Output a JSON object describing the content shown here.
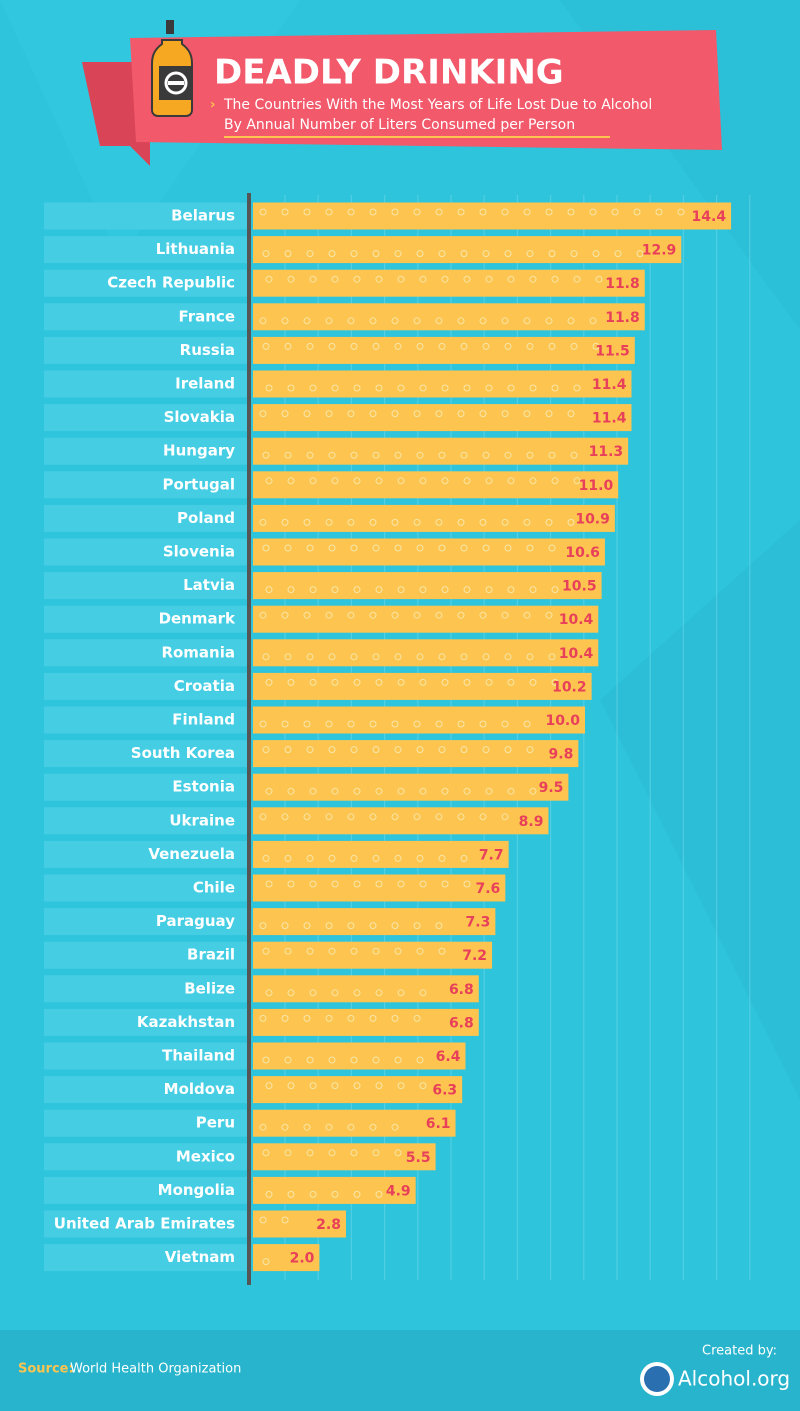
{
  "chart_data": {
    "type": "bar",
    "orientation": "horizontal",
    "title": "DEADLY DRINKING",
    "subtitle": [
      "The Countries With the Most Years of Life Lost Due to Alcohol",
      "By Annual Number of Liters Consumed per Person"
    ],
    "categories": [
      "Belarus",
      "Lithuania",
      "Czech Republic",
      "France",
      "Russia",
      "Ireland",
      "Slovakia",
      "Hungary",
      "Portugal",
      "Poland",
      "Slovenia",
      "Latvia",
      "Denmark",
      "Romania",
      "Croatia",
      "Finland",
      "South Korea",
      "Estonia",
      "Ukraine",
      "Venezuela",
      "Chile",
      "Paraguay",
      "Brazil",
      "Belize",
      "Kazakhstan",
      "Thailand",
      "Moldova",
      "Peru",
      "Mexico",
      "Mongolia",
      "United Arab Emirates",
      "Vietnam"
    ],
    "values": [
      14.4,
      12.9,
      11.8,
      11.8,
      11.5,
      11.4,
      11.4,
      11.3,
      11.0,
      10.9,
      10.6,
      10.5,
      10.4,
      10.4,
      10.2,
      10.0,
      9.8,
      9.5,
      8.9,
      7.7,
      7.6,
      7.3,
      7.2,
      6.8,
      6.8,
      6.4,
      6.3,
      6.1,
      5.5,
      4.9,
      2.8,
      2.0
    ],
    "value_labels": [
      "14.4",
      "12.9",
      "11.8",
      "11.8",
      "11.5",
      "11.4",
      "11.4",
      "11.3",
      "11.0",
      "10.9",
      "10.6",
      "10.5",
      "10.4",
      "10.4",
      "10.2",
      "10.0",
      "9.8",
      "9.5",
      "8.9",
      "7.7",
      "7.6",
      "7.3",
      "7.2",
      "6.8",
      "6.8",
      "6.4",
      "6.3",
      "6.1",
      "5.5",
      "4.9",
      "2.8",
      "2.0"
    ],
    "color": "#fdc550",
    "label_color": "#e8405a"
  },
  "footer": {
    "source_label": "Source:",
    "source": "World Health Organization",
    "credit_label": "Created by:",
    "credit": "Alcohol.org"
  }
}
